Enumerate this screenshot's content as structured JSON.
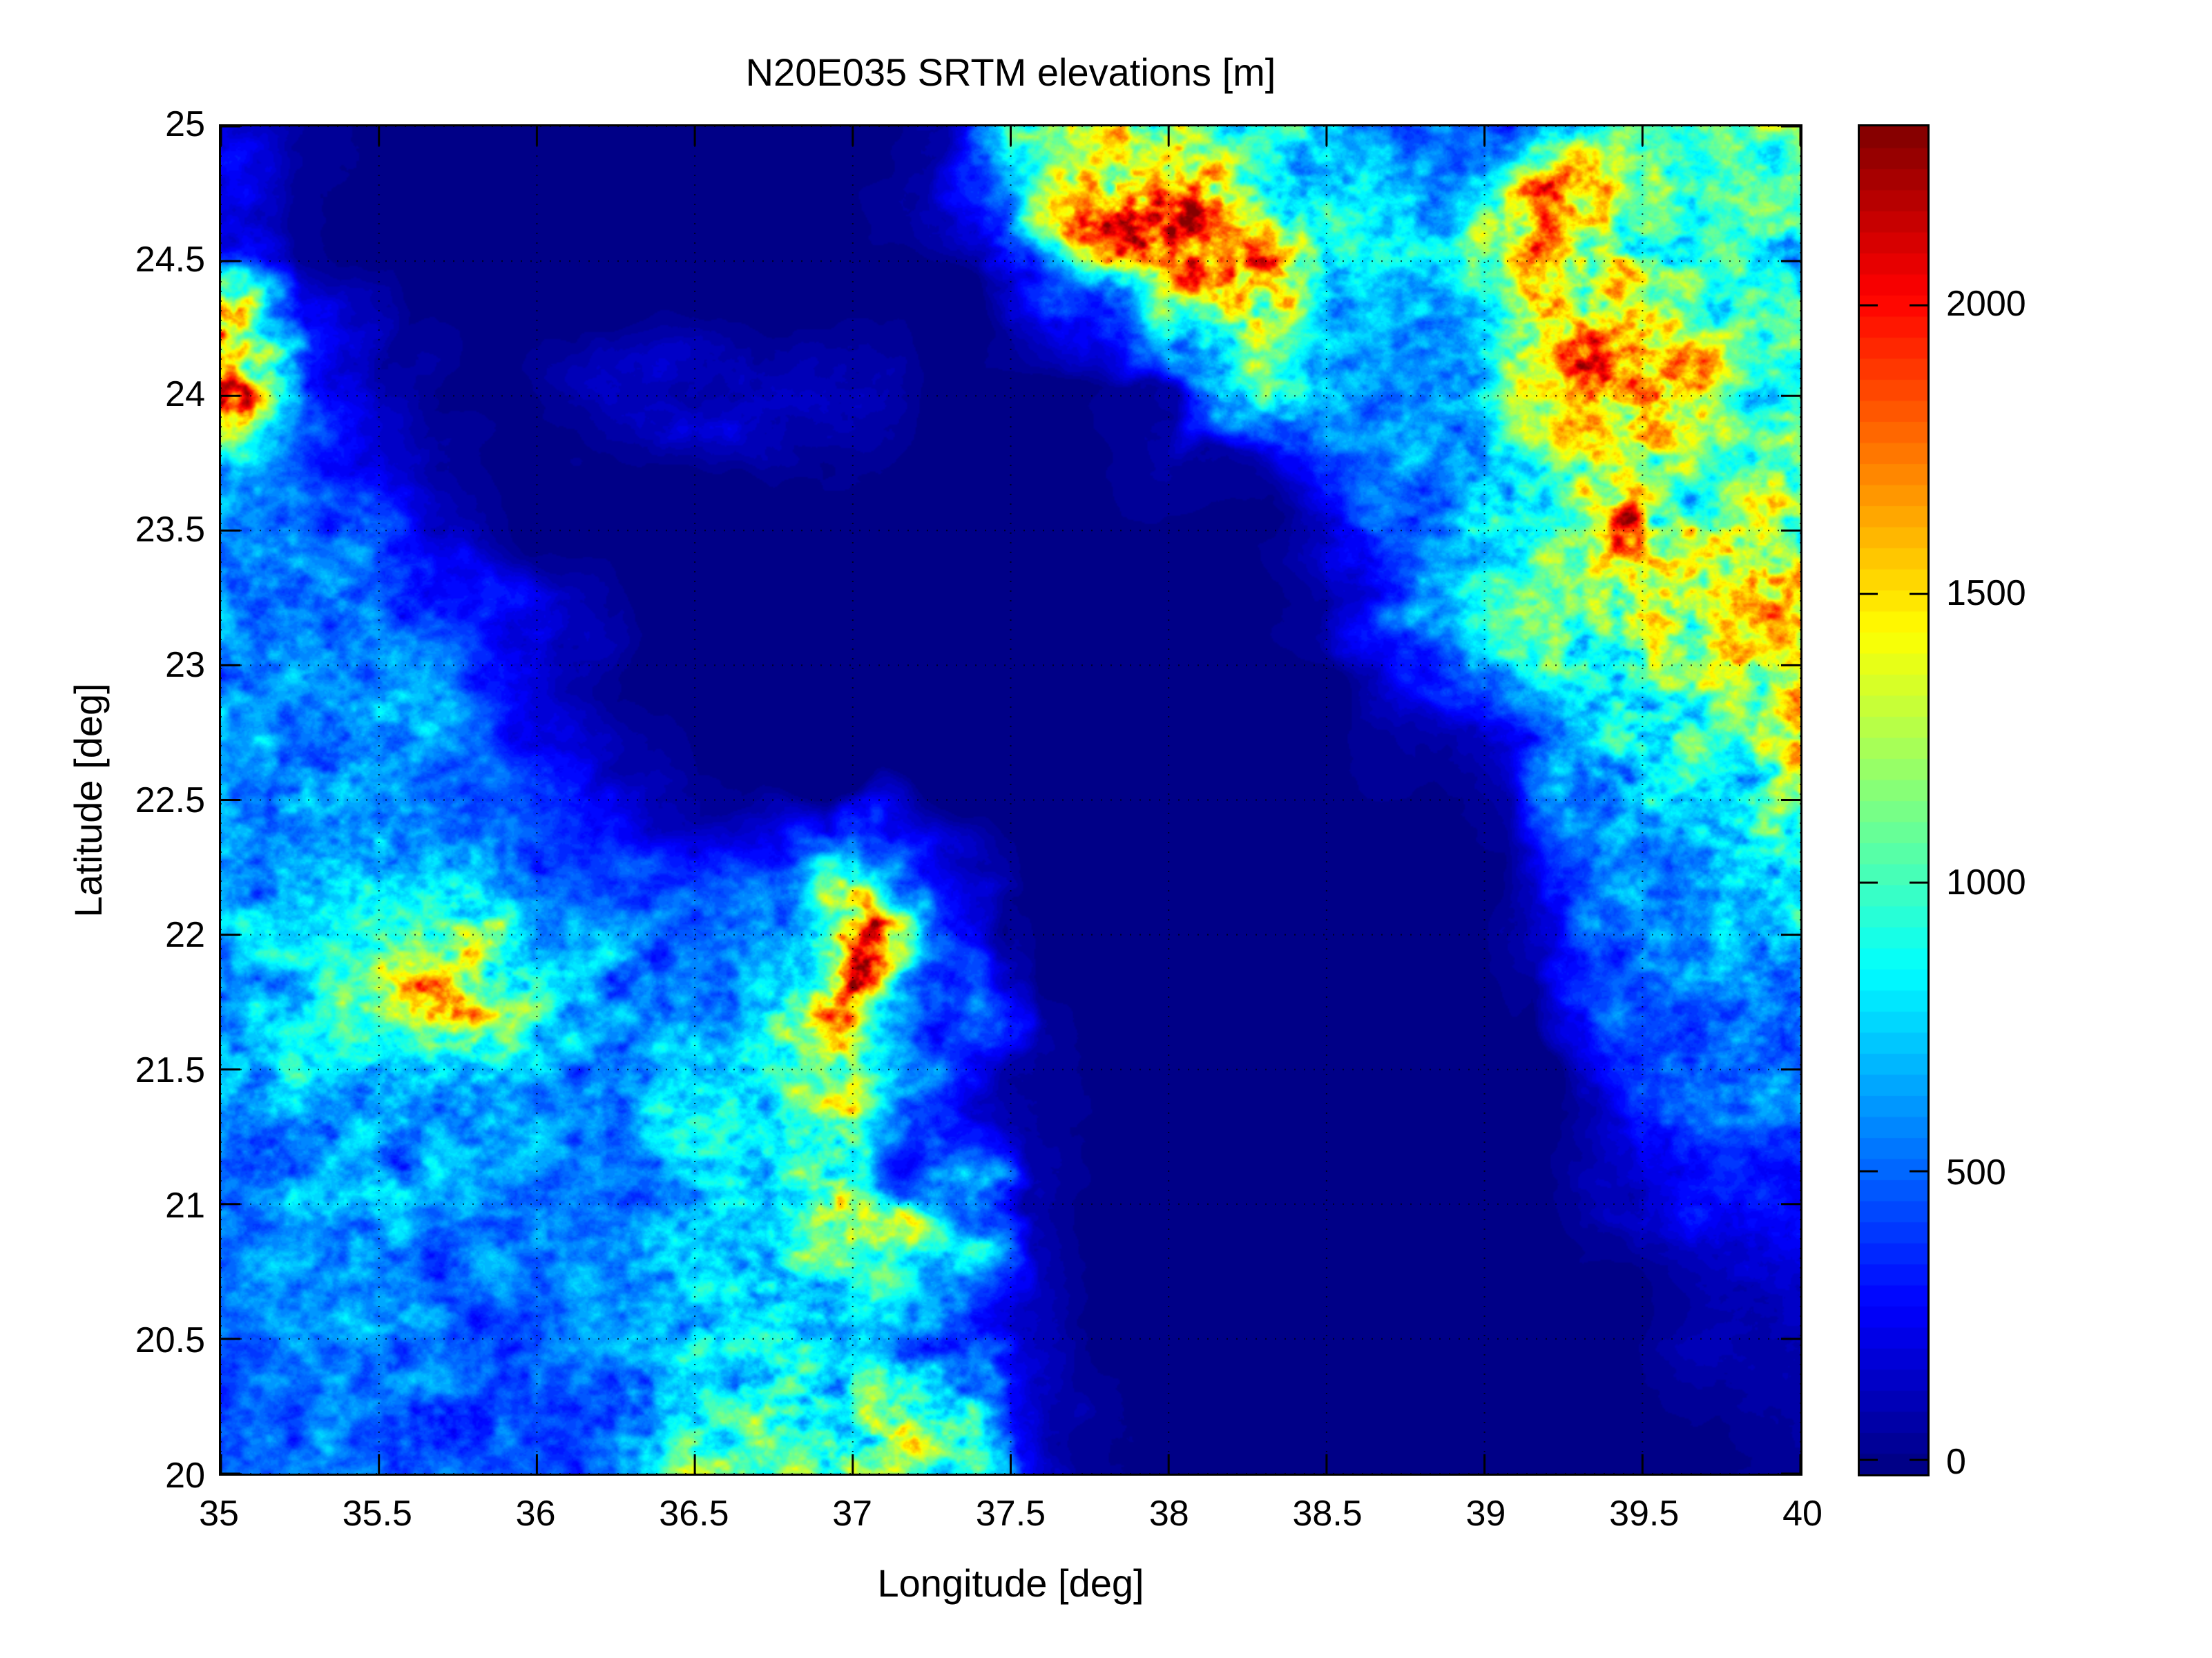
{
  "figure": {
    "background_color": "#ffffff",
    "axis_color": "#000000"
  },
  "chart_data": {
    "type": "heatmap",
    "title": "N20E035 SRTM elevations [m]",
    "xlabel": "Longitude [deg]",
    "ylabel": "Latitude [deg]",
    "xlim": [
      35,
      40
    ],
    "ylim": [
      20,
      25
    ],
    "x_tick_labels": [
      "35",
      "35.5",
      "36",
      "36.5",
      "37",
      "37.5",
      "38",
      "38.5",
      "39",
      "39.5",
      "40"
    ],
    "x_tick_values": [
      35,
      35.5,
      36,
      36.5,
      37,
      37.5,
      38,
      38.5,
      39,
      39.5,
      40
    ],
    "y_tick_labels": [
      "25",
      "24.5",
      "24",
      "23.5",
      "23",
      "22.5",
      "22",
      "21.5",
      "21",
      "20.5",
      "20"
    ],
    "y_tick_values": [
      25,
      24.5,
      24,
      23.5,
      23,
      22.5,
      22,
      21.5,
      21,
      20.5,
      20
    ],
    "grid": "dotted",
    "colormap": "jet-64",
    "vmin": -25,
    "vmax": 2310,
    "colorbar": {
      "position": "right",
      "tick_labels": [
        "2000",
        "1500",
        "1000",
        "500",
        "0"
      ],
      "tick_values": [
        2000,
        1500,
        1000,
        500,
        0
      ]
    },
    "lats": [
      25,
      24.75,
      24.5,
      24.25,
      24,
      23.75,
      23.5,
      23.25,
      23,
      22.75,
      22.5,
      22.25,
      22,
      21.75,
      21.5,
      21.25,
      21,
      20.75,
      20.5,
      20.25,
      20
    ],
    "lons": [
      35,
      35.25,
      35.5,
      35.75,
      36,
      36.25,
      36.5,
      36.75,
      37,
      37.25,
      37.5,
      37.75,
      38,
      38.25,
      38.5,
      38.75,
      39,
      39.25,
      39.5,
      39.75,
      40
    ],
    "elevations_m": [
      [
        260,
        20,
        0,
        0,
        0,
        0,
        0,
        0,
        0,
        100,
        800,
        1150,
        1400,
        900,
        800,
        550,
        500,
        800,
        900,
        1100,
        1000
      ],
      [
        300,
        30,
        0,
        0,
        0,
        0,
        0,
        0,
        0,
        50,
        300,
        1500,
        2100,
        1200,
        800,
        700,
        800,
        1700,
        1000,
        900,
        950
      ],
      [
        400,
        50,
        0,
        0,
        0,
        0,
        0,
        0,
        0,
        0,
        0,
        800,
        1600,
        1800,
        900,
        700,
        900,
        1600,
        1100,
        900,
        900
      ],
      [
        1900,
        250,
        0,
        0,
        0,
        0,
        0,
        0,
        0,
        0,
        0,
        300,
        1200,
        1500,
        800,
        600,
        800,
        1600,
        1400,
        900,
        900
      ],
      [
        1400,
        350,
        100,
        0,
        0,
        120,
        200,
        150,
        100,
        0,
        0,
        0,
        100,
        1000,
        800,
        500,
        700,
        1200,
        2000,
        1000,
        900
      ],
      [
        600,
        480,
        250,
        60,
        0,
        0,
        0,
        0,
        0,
        0,
        0,
        0,
        50,
        50,
        400,
        600,
        700,
        1000,
        1100,
        900,
        1000
      ],
      [
        700,
        560,
        500,
        220,
        0,
        0,
        0,
        0,
        0,
        0,
        0,
        0,
        0,
        0,
        150,
        500,
        800,
        1000,
        1900,
        1000,
        1300
      ],
      [
        650,
        600,
        560,
        350,
        90,
        0,
        0,
        0,
        0,
        0,
        0,
        0,
        0,
        0,
        50,
        600,
        900,
        1100,
        1300,
        1500,
        1450
      ],
      [
        600,
        560,
        600,
        420,
        160,
        0,
        0,
        0,
        0,
        0,
        0,
        0,
        0,
        0,
        0,
        300,
        800,
        1000,
        1100,
        1300,
        1500
      ],
      [
        560,
        600,
        650,
        500,
        260,
        60,
        0,
        0,
        0,
        0,
        0,
        0,
        0,
        0,
        0,
        100,
        400,
        800,
        900,
        1100,
        1600
      ],
      [
        520,
        650,
        700,
        560,
        360,
        160,
        40,
        0,
        0,
        0,
        0,
        0,
        0,
        0,
        0,
        0,
        100,
        500,
        700,
        850,
        1000
      ],
      [
        550,
        700,
        760,
        700,
        500,
        380,
        300,
        350,
        700,
        250,
        0,
        0,
        0,
        0,
        0,
        0,
        0,
        200,
        600,
        750,
        850
      ],
      [
        600,
        750,
        900,
        1300,
        700,
        500,
        450,
        700,
        1800,
        500,
        0,
        0,
        0,
        0,
        0,
        0,
        0,
        150,
        550,
        700,
        800
      ],
      [
        650,
        720,
        1000,
        1700,
        800,
        550,
        500,
        800,
        2000,
        700,
        50,
        0,
        0,
        0,
        0,
        0,
        0,
        0,
        450,
        650,
        700
      ],
      [
        700,
        740,
        800,
        900,
        650,
        600,
        700,
        900,
        1100,
        500,
        60,
        0,
        0,
        0,
        0,
        0,
        0,
        0,
        350,
        550,
        600
      ],
      [
        600,
        660,
        700,
        640,
        580,
        600,
        750,
        800,
        1200,
        400,
        50,
        0,
        0,
        0,
        0,
        0,
        0,
        0,
        150,
        300,
        400
      ],
      [
        560,
        620,
        660,
        620,
        520,
        560,
        700,
        800,
        1500,
        1300,
        80,
        0,
        0,
        0,
        0,
        0,
        0,
        0,
        120,
        250,
        320
      ],
      [
        520,
        560,
        620,
        560,
        520,
        600,
        700,
        900,
        900,
        500,
        100,
        0,
        0,
        0,
        0,
        0,
        0,
        0,
        0,
        120,
        200
      ],
      [
        500,
        530,
        560,
        520,
        460,
        520,
        700,
        900,
        800,
        550,
        150,
        0,
        0,
        0,
        0,
        0,
        0,
        0,
        0,
        60,
        120
      ],
      [
        480,
        510,
        530,
        490,
        430,
        480,
        800,
        1000,
        800,
        1600,
        250,
        20,
        0,
        0,
        0,
        0,
        0,
        0,
        0,
        0,
        80
      ],
      [
        460,
        490,
        510,
        470,
        420,
        450,
        1200,
        900,
        1300,
        900,
        300,
        40,
        0,
        0,
        0,
        0,
        0,
        0,
        0,
        0,
        60
      ]
    ]
  }
}
